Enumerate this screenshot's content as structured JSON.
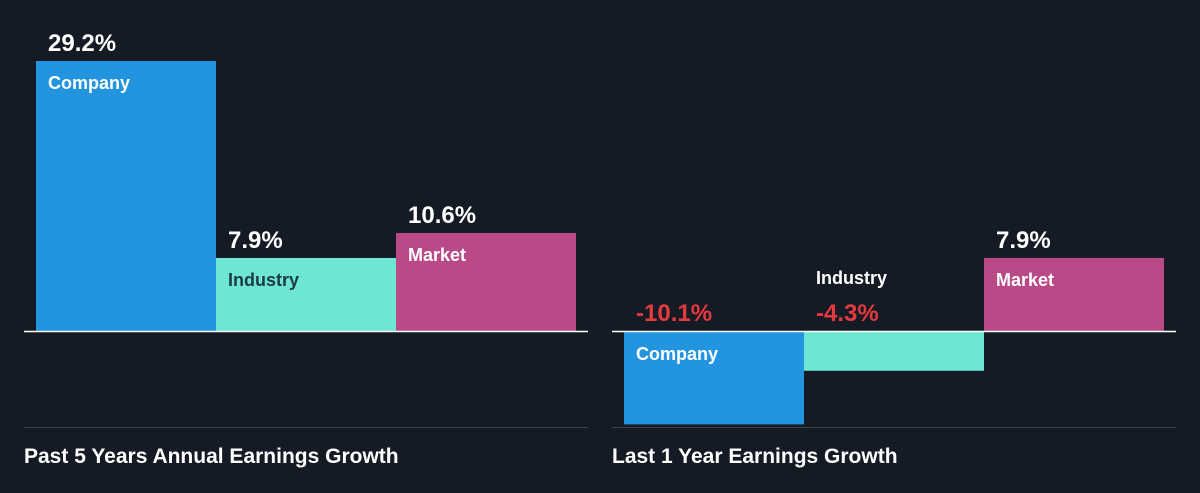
{
  "colors": {
    "background": "#151b24",
    "company": "#2394e0",
    "industry": "#6ee6d4",
    "market": "#b94a87",
    "positive_text": "#ffffff",
    "negative_text": "#e5393e",
    "axis": "#ffffff",
    "footer_rule": "#3a424d"
  },
  "chart_data": [
    {
      "type": "bar",
      "title": "Past 5 Years Annual Earnings Growth",
      "categories": [
        "Company",
        "Industry",
        "Market"
      ],
      "values": [
        29.2,
        7.9,
        10.6
      ],
      "value_labels": [
        "29.2%",
        "7.9%",
        "10.6%"
      ],
      "unit": "%",
      "ylim": [
        0,
        29.2
      ],
      "grid": false,
      "legend": "none"
    },
    {
      "type": "bar",
      "title": "Last 1 Year Earnings Growth",
      "categories": [
        "Company",
        "Industry",
        "Market"
      ],
      "values": [
        -10.1,
        -4.3,
        7.9
      ],
      "value_labels": [
        "-10.1%",
        "-4.3%",
        "7.9%"
      ],
      "unit": "%",
      "ylim": [
        -10.1,
        10.6
      ],
      "grid": false,
      "legend": "none"
    }
  ]
}
